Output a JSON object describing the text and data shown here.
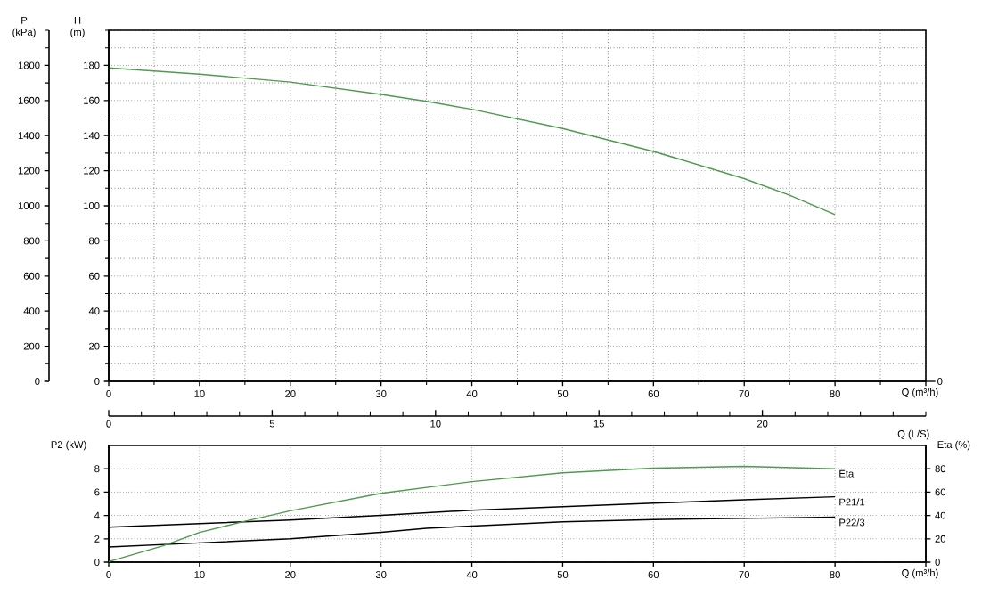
{
  "chart_data": [
    {
      "type": "line",
      "xlabel": "Q (m³/h)",
      "ylabel": "H (m)",
      "y2label": "P (kPa)",
      "xlim": [
        0,
        90
      ],
      "ylim": [
        0,
        200
      ],
      "y2lim": [
        0,
        2000
      ],
      "xticks": [
        0,
        10,
        20,
        30,
        40,
        50,
        60,
        70,
        80,
        {
          "value": 90,
          "label": null
        }
      ],
      "yticks": [
        0,
        20,
        40,
        60,
        80,
        100,
        120,
        140,
        160,
        180
      ],
      "y2ticks": [
        0,
        200,
        400,
        600,
        800,
        1000,
        1200,
        1400,
        1600,
        1800
      ],
      "grid": true,
      "annotations": [
        "0"
      ],
      "series": [
        {
          "color": "#4e9a4e",
          "x": [
            0,
            10,
            20,
            30,
            35,
            40,
            50,
            60,
            70,
            75,
            80
          ],
          "values": [
            178.5,
            175,
            170.5,
            163.5,
            159.5,
            155,
            144,
            131,
            115.5,
            106,
            95
          ]
        }
      ]
    },
    {
      "type": "line",
      "xlabel": "Q (m³/h)",
      "ylabel": "P2 (kW)",
      "y2label": "Eta (%)",
      "x2label": "Q (L/S)",
      "xlim": [
        0,
        90
      ],
      "ylim": [
        0,
        10
      ],
      "y2lim": [
        0,
        100
      ],
      "x2lim": [
        0,
        25
      ],
      "xticks": [
        0,
        10,
        20,
        30,
        40,
        50,
        60,
        70,
        80,
        {
          "value": 90,
          "label": null
        }
      ],
      "yticks": [
        0,
        2,
        4,
        6,
        8
      ],
      "y2ticks": [
        0,
        20,
        40,
        60,
        80
      ],
      "x2ticks": [
        0,
        5,
        10,
        15,
        20
      ],
      "grid": true,
      "series": [
        {
          "name": "Eta",
          "axis": "y2",
          "color": "#4e9a4e",
          "x": [
            0,
            6,
            10,
            15,
            20,
            30,
            40,
            50,
            60,
            70,
            80
          ],
          "values": [
            0.5,
            14,
            25.5,
            35,
            44,
            59,
            69,
            76.5,
            80.5,
            82,
            80
          ]
        },
        {
          "name": "P21/1",
          "color": "#000000",
          "x": [
            0,
            10,
            20,
            30,
            40,
            50,
            60,
            70,
            80
          ],
          "values": [
            3.0,
            3.3,
            3.6,
            4.0,
            4.45,
            4.75,
            5.05,
            5.35,
            5.6
          ]
        },
        {
          "name": "P22/3",
          "color": "#000000",
          "x": [
            0,
            10,
            20,
            30,
            35,
            40,
            50,
            60,
            70,
            80
          ],
          "values": [
            1.3,
            1.65,
            2.0,
            2.55,
            2.9,
            3.1,
            3.45,
            3.65,
            3.75,
            3.85
          ]
        }
      ]
    }
  ]
}
